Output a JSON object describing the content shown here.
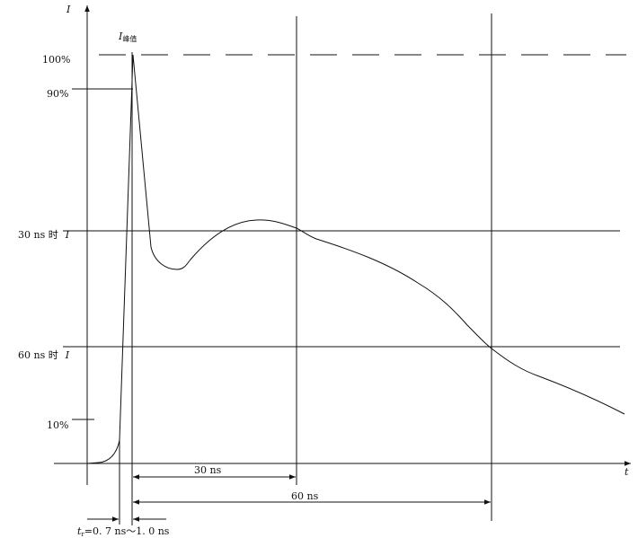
{
  "axes": {
    "y_label": "I",
    "x_label": "t"
  },
  "peak_label": {
    "symbol": "I",
    "subscript": "峰值"
  },
  "levels": {
    "p100": "100%",
    "p90": "90%",
    "at30": {
      "text": "30 ns 时",
      "symbol": "I"
    },
    "at60": {
      "text": "60 ns 时",
      "symbol": "I"
    },
    "p10": "10%"
  },
  "dimensions": {
    "d30": "30 ns",
    "d60": "60 ns",
    "rise": {
      "symbol": "t",
      "subscript": "r",
      "text": "=0. 7 ns～1. 0 ns"
    }
  }
}
